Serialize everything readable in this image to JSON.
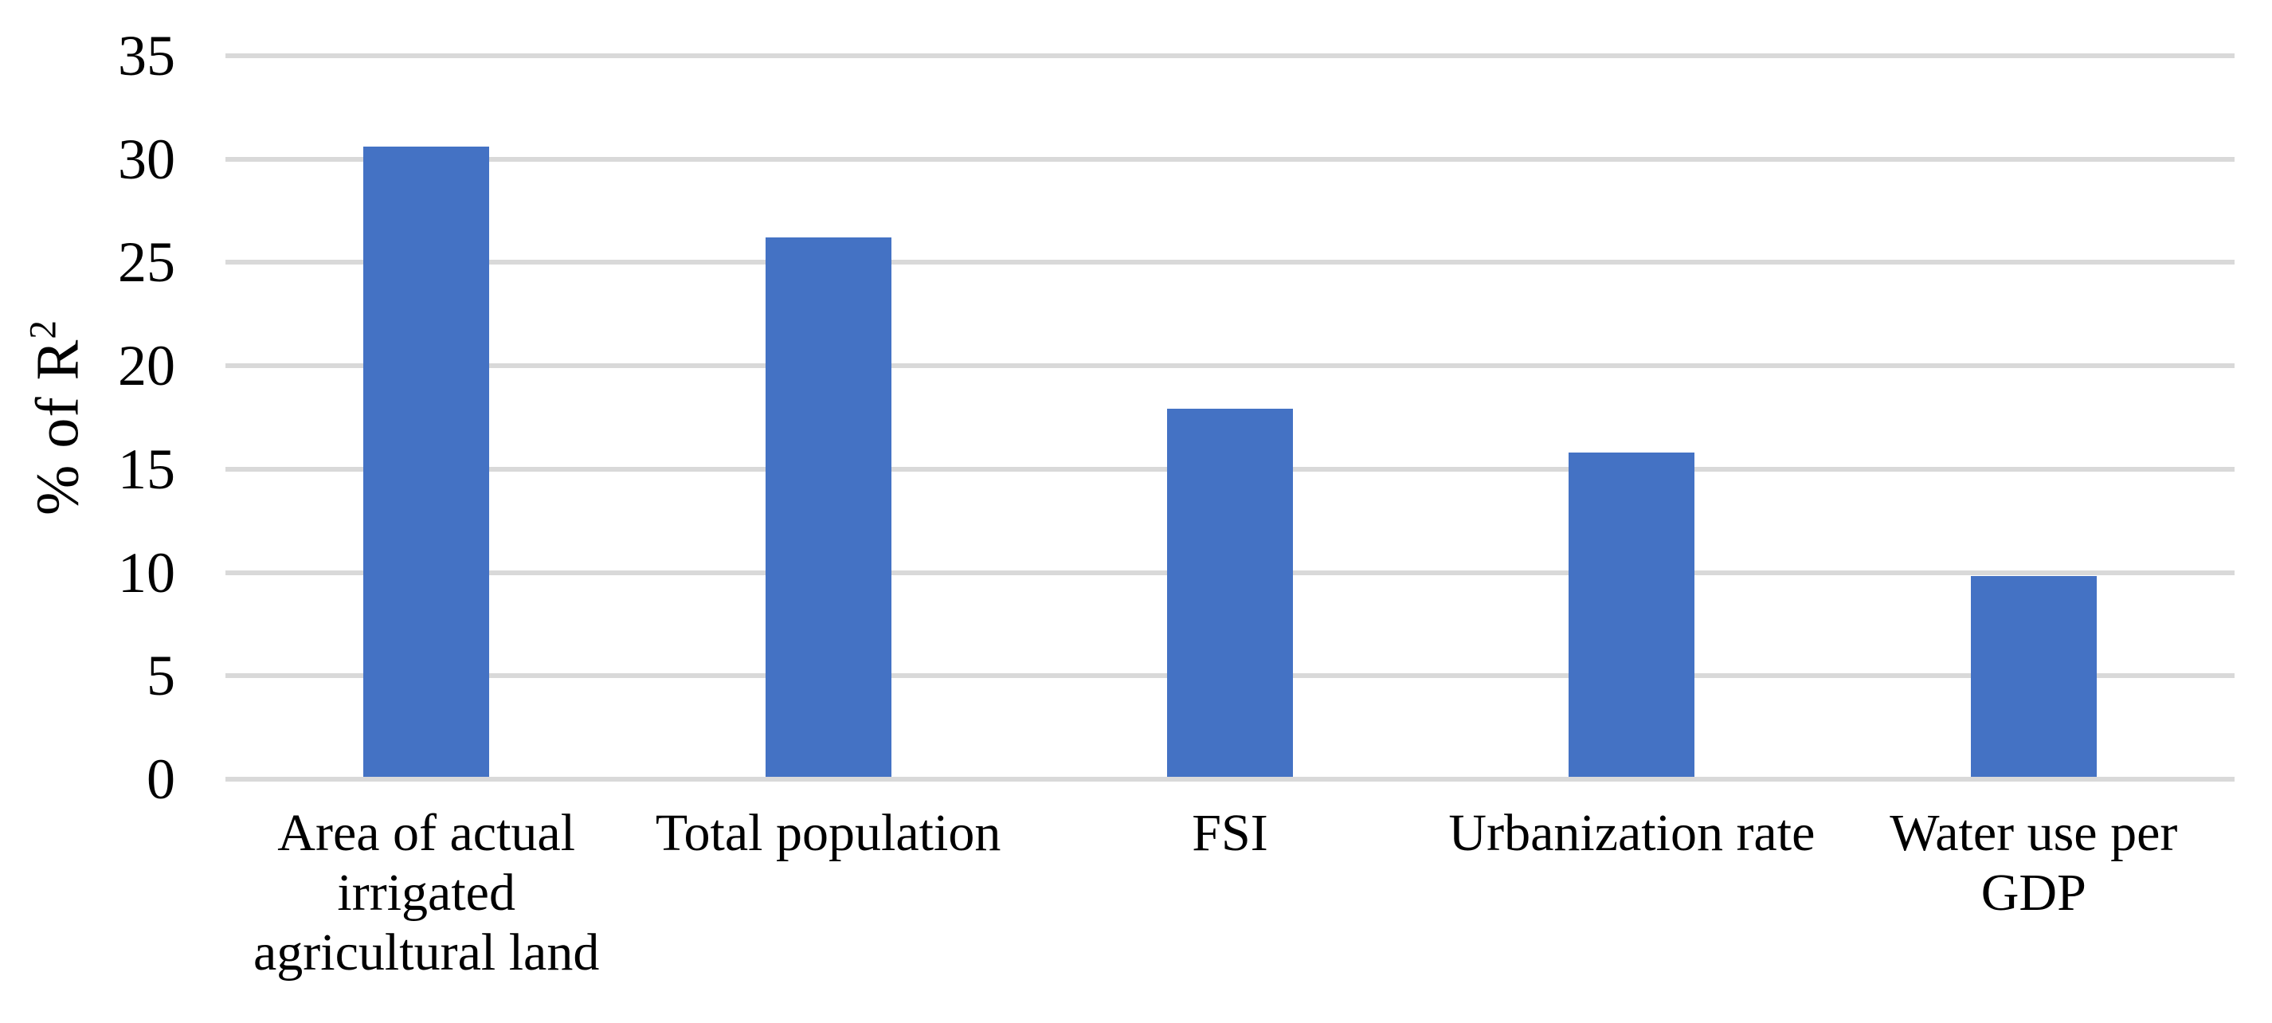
{
  "chart_data": {
    "type": "bar",
    "title": "",
    "categories": [
      "Area of actual irrigated agricultural land",
      "Total population",
      "FSI",
      "Urbanization rate",
      "Water use per GDP"
    ],
    "categories_lines": [
      [
        "Area of actual",
        "irrigated",
        "agricultural land"
      ],
      [
        "Total population"
      ],
      [
        "FSI"
      ],
      [
        "Urbanization rate"
      ],
      [
        "Water use per",
        "GDP"
      ]
    ],
    "values": [
      30.5,
      26.1,
      17.8,
      15.7,
      9.7
    ],
    "xlabel": "",
    "ylabel": "% of R²",
    "ylabel_main": "% of R",
    "ylabel_sup": "2",
    "ylim": [
      0,
      35
    ],
    "ytick_step": 5,
    "yticks": [
      0,
      5,
      10,
      15,
      20,
      25,
      30,
      35
    ],
    "grid": "horizontal",
    "legend": "none",
    "bar_color": "#4472C4",
    "gridline_color": "#D9D9D9",
    "axis_line_color": "#D9D9D9",
    "text_color": "#000000"
  }
}
